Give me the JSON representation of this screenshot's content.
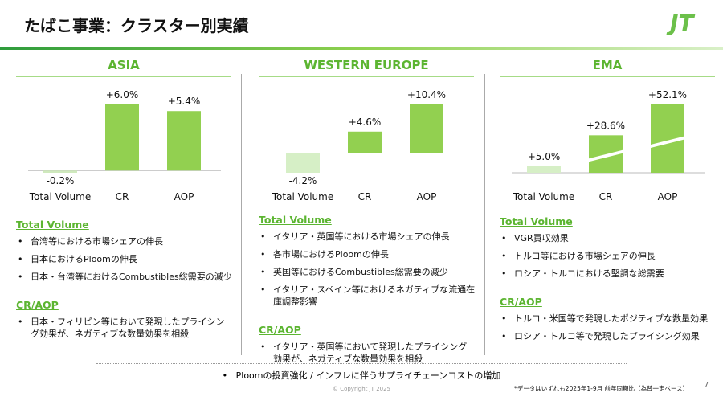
{
  "header": {
    "title": "たばこ事業：クラスター別実績",
    "logo": "JT"
  },
  "chart_data": [
    {
      "type": "bar",
      "title": "ASIA",
      "categories": [
        "Total Volume",
        "CR",
        "AOP"
      ],
      "values": [
        -0.2,
        6.0,
        5.4
      ],
      "value_labels": [
        "-0.2%",
        "+6.0%",
        "+5.4%"
      ],
      "colors": [
        "#cfe9bd",
        "#92d050",
        "#92d050"
      ]
    },
    {
      "type": "bar",
      "title": "WESTERN EUROPE",
      "categories": [
        "Total Volume",
        "CR",
        "AOP"
      ],
      "values": [
        -4.2,
        4.6,
        10.4
      ],
      "value_labels": [
        "-4.2%",
        "+4.6%",
        "+10.4%"
      ],
      "colors": [
        "#d6efc6",
        "#92d050",
        "#92d050"
      ]
    },
    {
      "type": "bar",
      "title": "EMA",
      "categories": [
        "Total Volume",
        "CR",
        "AOP"
      ],
      "values": [
        5.0,
        28.6,
        52.1
      ],
      "value_labels": [
        "+5.0%",
        "+28.6%",
        "+52.1%"
      ],
      "colors": [
        "#d6efc6",
        "#92d050",
        "#92d050"
      ],
      "axis_break": true
    }
  ],
  "columns": [
    {
      "sections": [
        {
          "heading": "Total Volume",
          "bullets": [
            "台湾等における市場シェアの伸長",
            "日本におけるPloomの伸長",
            "日本・台湾等におけるCombustibles総需要の減少"
          ]
        },
        {
          "heading": "CR/AOP",
          "bullets": [
            "日本・フィリピン等において発現したプライシング効果が、ネガティブな数量効果を相殺"
          ]
        }
      ]
    },
    {
      "sections": [
        {
          "heading": "Total Volume",
          "bullets": [
            "イタリア・英国等における市場シェアの伸長",
            "各市場におけるPloomの伸長",
            "英国等におけるCombustibles総需要の減少",
            "イタリア・スペイン等におけるネガティブな流通在庫調整影響"
          ]
        },
        {
          "heading": "CR/AOP",
          "bullets": [
            "イタリア・英国等において発現したプライシング効果が、ネガティブな数量効果を相殺"
          ]
        }
      ]
    },
    {
      "sections": [
        {
          "heading": "Total Volume",
          "bullets": [
            "VGR買収効果",
            "トルコ等における市場シェアの伸長",
            "ロシア・トルコにおける堅調な総需要"
          ]
        },
        {
          "heading": "CR/AOP",
          "bullets": [
            "トルコ・米国等で発現したポジティブな数量効果",
            "ロシア・トルコ等で発現したプライシング効果"
          ]
        }
      ]
    }
  ],
  "footer": {
    "note": "Ploomの投資強化 / インフレに伴うサプライチェーンコストの増加",
    "copyright": "© Copyright JT 2025",
    "footnote": "*データはいずれも2025年1-9月 前年同期比（為替一定ベース）",
    "page": "7"
  }
}
